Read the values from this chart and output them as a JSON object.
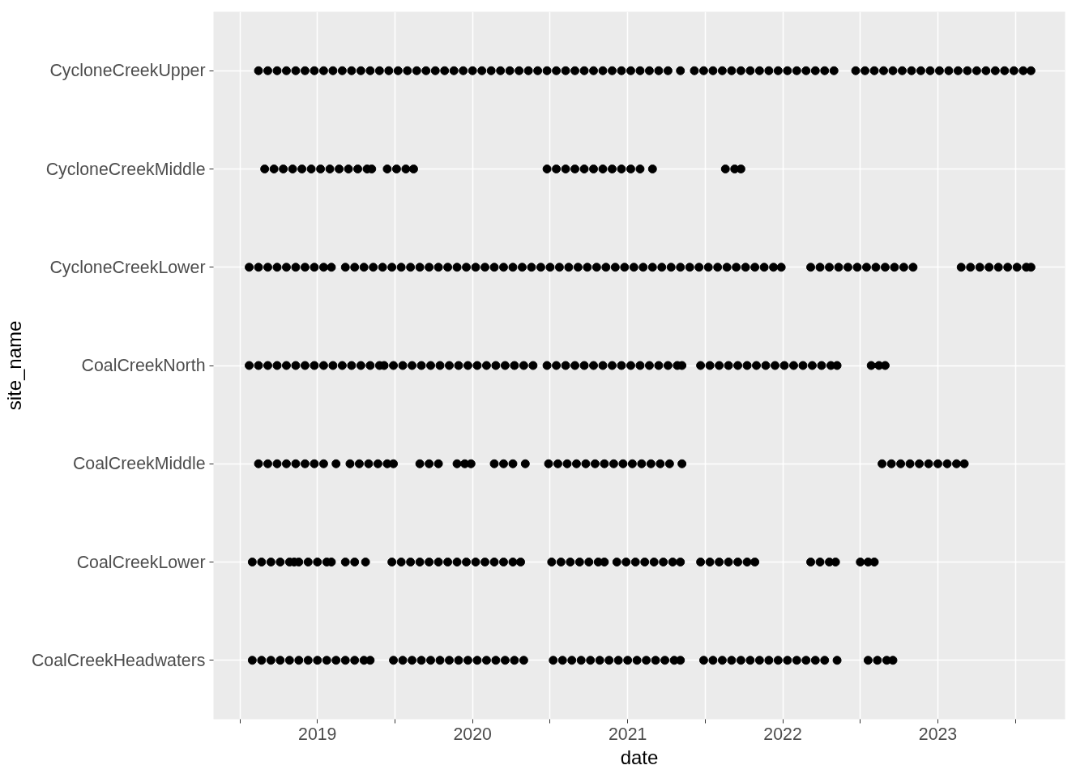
{
  "chart_data": {
    "type": "scatter",
    "orientation": "horizontal",
    "xlabel": "date",
    "ylabel": "site_name",
    "categories": [
      "CycloneCreekUpper",
      "CycloneCreekMiddle",
      "CycloneCreekLower",
      "CoalCreekNorth",
      "CoalCreekMiddle",
      "CoalCreekLower",
      "CoalCreekHeadwaters"
    ],
    "xlim": [
      2018.33,
      2023.82
    ],
    "xticks": [
      {
        "value": 2018.5,
        "label": null
      },
      {
        "value": 2019,
        "label": "2019"
      },
      {
        "value": 2019.5,
        "label": null
      },
      {
        "value": 2020,
        "label": "2020"
      },
      {
        "value": 2020.5,
        "label": null
      },
      {
        "value": 2021,
        "label": "2021"
      },
      {
        "value": 2021.5,
        "label": null
      },
      {
        "value": 2022,
        "label": "2022"
      },
      {
        "value": 2022.5,
        "label": null
      },
      {
        "value": 2023,
        "label": "2023"
      },
      {
        "value": 2023.5,
        "label": null
      }
    ],
    "grid": true,
    "marker": "circle",
    "color": "#000000",
    "series": [
      {
        "values": [
          2018.62,
          2018.66,
          2018.56,
          2018.56,
          2018.62,
          2018.58,
          2018.58
        ]
      },
      {
        "values": [
          2018.68,
          2018.72,
          2018.62,
          2018.62,
          2018.68,
          2018.64,
          2018.64
        ]
      },
      {
        "values": [
          2018.74,
          2018.78,
          2018.68,
          2018.68,
          2018.74,
          2018.7,
          2018.7
        ]
      },
      {
        "values": [
          2018.8,
          2018.84,
          2018.74,
          2018.74,
          2018.8,
          2018.76,
          2018.76
        ]
      },
      {
        "values": [
          2018.86,
          2018.9,
          2018.8,
          2018.8,
          2018.86,
          2018.82,
          2018.82
        ]
      },
      {
        "values": [
          2018.92,
          2018.96,
          2018.86,
          2018.86,
          2018.92,
          2018.85,
          2018.88
        ]
      },
      {
        "values": [
          2018.98,
          2019.02,
          2018.92,
          2018.92,
          2018.98,
          2018.88,
          2018.94
        ]
      },
      {
        "values": [
          2019.04,
          2019.08,
          2018.98,
          2018.98,
          2019.04,
          2018.94,
          2019.0
        ]
      },
      {
        "values": [
          2019.1,
          2019.14,
          2019.04,
          2019.04,
          null,
          2019.0,
          2019.06
        ]
      },
      {
        "values": [
          2019.16,
          2019.2,
          2019.09,
          2019.1,
          2019.12,
          2019.06,
          2019.12
        ]
      },
      {
        "values": [
          2019.22,
          2019.26,
          2019.18,
          2019.16,
          2019.21,
          2019.09,
          2019.18
        ]
      },
      {
        "values": [
          2019.28,
          2019.32,
          2019.24,
          2019.22,
          2019.27,
          2019.18,
          2019.24
        ]
      },
      {
        "values": [
          2019.34,
          2019.35,
          2019.3,
          2019.28,
          2019.33,
          2019.24,
          2019.3
        ]
      },
      {
        "values": [
          2019.4,
          2019.45,
          2019.36,
          2019.34,
          2019.39,
          2019.31,
          2019.34
        ]
      },
      {
        "values": [
          2019.46,
          2019.51,
          2019.42,
          2019.4,
          2019.45,
          2019.48,
          2019.49
        ]
      },
      {
        "values": [
          2019.52,
          2019.57,
          2019.48,
          2019.43,
          2019.49,
          2019.54,
          2019.55
        ]
      },
      {
        "values": [
          2019.58,
          2019.62,
          2019.54,
          2019.49,
          2019.66,
          2019.6,
          2019.61
        ]
      },
      {
        "values": [
          2019.64,
          2020.48,
          2019.6,
          2019.55,
          2019.72,
          2019.66,
          2019.67
        ]
      },
      {
        "values": [
          2019.7,
          2020.54,
          2019.66,
          2019.61,
          2019.78,
          2019.72,
          2019.73
        ]
      },
      {
        "values": [
          2019.76,
          2020.6,
          2019.72,
          2019.67,
          2019.9,
          2019.78,
          2019.79
        ]
      },
      {
        "values": [
          2019.82,
          2020.66,
          2019.78,
          2019.73,
          2019.95,
          2019.84,
          2019.85
        ]
      },
      {
        "values": [
          2019.88,
          2020.72,
          2019.84,
          2019.79,
          2019.99,
          2019.9,
          2019.91
        ]
      },
      {
        "values": [
          2019.94,
          2020.78,
          2019.9,
          2019.85,
          2020.14,
          2019.96,
          2019.97
        ]
      },
      {
        "values": [
          2020.0,
          2020.84,
          2019.96,
          2019.91,
          2020.2,
          2020.02,
          2020.03
        ]
      },
      {
        "values": [
          2020.06,
          2020.9,
          2020.02,
          2019.97,
          2020.26,
          2020.08,
          2020.09
        ]
      },
      {
        "values": [
          2020.12,
          2020.96,
          2020.08,
          2020.03,
          null,
          2020.14,
          2020.15
        ]
      },
      {
        "values": [
          2020.18,
          2021.02,
          2020.14,
          2020.09,
          2020.34,
          2020.2,
          2020.21
        ]
      },
      {
        "values": [
          2020.24,
          2021.08,
          2020.2,
          2020.15,
          2020.49,
          2020.26,
          2020.27
        ]
      },
      {
        "values": [
          2020.3,
          null,
          2020.26,
          2020.21,
          2020.55,
          2020.31,
          2020.33
        ]
      },
      {
        "values": [
          2020.36,
          2021.16,
          2020.32,
          2020.27,
          2020.61,
          2020.51,
          2020.52
        ]
      },
      {
        "values": [
          2020.42,
          2021.63,
          2020.38,
          2020.33,
          2020.67,
          2020.57,
          2020.58
        ]
      },
      {
        "values": [
          2020.48,
          2021.69,
          2020.44,
          2020.39,
          2020.73,
          2020.63,
          2020.64
        ]
      },
      {
        "values": [
          2020.54,
          2021.73,
          2020.5,
          2020.48,
          2020.79,
          2020.69,
          2020.7
        ]
      },
      {
        "values": [
          2020.6,
          null,
          2020.56,
          2020.54,
          2020.85,
          2020.75,
          2020.76
        ]
      },
      {
        "values": [
          2020.66,
          null,
          2020.62,
          2020.6,
          2020.91,
          2020.81,
          2020.82
        ]
      },
      {
        "values": [
          2020.72,
          null,
          2020.68,
          2020.66,
          2020.97,
          2020.85,
          2020.88
        ]
      },
      {
        "values": [
          2020.78,
          null,
          2020.74,
          2020.72,
          2021.03,
          2020.93,
          2020.94
        ]
      },
      {
        "values": [
          2020.84,
          null,
          2020.8,
          2020.78,
          2021.09,
          2020.99,
          2021.0
        ]
      },
      {
        "values": [
          2020.9,
          null,
          2020.86,
          2020.84,
          2021.15,
          2021.05,
          2021.06
        ]
      },
      {
        "values": [
          2020.96,
          null,
          2020.92,
          2020.9,
          2021.21,
          2021.11,
          2021.12
        ]
      },
      {
        "values": [
          2021.02,
          null,
          2020.98,
          2020.96,
          2021.27,
          2021.17,
          2021.18
        ]
      },
      {
        "values": [
          2021.08,
          null,
          2021.04,
          2021.02,
          null,
          2021.23,
          2021.24
        ]
      },
      {
        "values": [
          2021.14,
          null,
          2021.1,
          2021.08,
          2021.35,
          2021.29,
          2021.3
        ]
      },
      {
        "values": [
          2021.2,
          null,
          2021.16,
          2021.14,
          2022.64,
          2021.34,
          2021.34
        ]
      },
      {
        "values": [
          2021.26,
          null,
          2021.22,
          2021.2,
          2022.7,
          2021.47,
          2021.49
        ]
      },
      {
        "values": [
          null,
          null,
          2021.28,
          2021.26,
          2022.76,
          2021.53,
          2021.55
        ]
      },
      {
        "values": [
          2021.34,
          null,
          2021.34,
          2021.32,
          2022.82,
          2021.59,
          2021.61
        ]
      },
      {
        "values": [
          2021.43,
          null,
          2021.4,
          2021.35,
          2022.88,
          2021.65,
          2021.67
        ]
      },
      {
        "values": [
          2021.49,
          null,
          2021.46,
          2021.47,
          2022.94,
          2021.71,
          2021.73
        ]
      },
      {
        "values": [
          2021.55,
          null,
          2021.52,
          2021.53,
          2023.0,
          2021.77,
          2021.79
        ]
      },
      {
        "values": [
          2021.61,
          null,
          2021.58,
          2021.59,
          2023.06,
          2021.82,
          2021.85
        ]
      },
      {
        "values": [
          2021.67,
          null,
          2021.64,
          2021.65,
          2023.12,
          2022.18,
          2021.91
        ]
      },
      {
        "values": [
          2021.73,
          null,
          2021.7,
          2021.71,
          2023.17,
          2022.24,
          2021.97
        ]
      },
      {
        "values": [
          2021.79,
          null,
          2021.76,
          2021.77,
          null,
          2022.3,
          2022.03
        ]
      },
      {
        "values": [
          2021.85,
          null,
          2021.82,
          2021.83,
          null,
          2022.34,
          2022.09
        ]
      },
      {
        "values": [
          2021.91,
          null,
          2021.88,
          2021.89,
          null,
          2022.5,
          2022.15
        ]
      },
      {
        "values": [
          2021.97,
          null,
          2021.94,
          2021.95,
          null,
          2022.55,
          2022.21
        ]
      },
      {
        "values": [
          2022.03,
          null,
          2021.99,
          2022.01,
          null,
          2022.59,
          2022.27
        ]
      },
      {
        "values": [
          2022.09,
          null,
          2022.18,
          2022.07,
          null,
          null,
          null
        ]
      },
      {
        "values": [
          2022.15,
          null,
          2022.24,
          2022.13,
          null,
          null,
          2022.35
        ]
      },
      {
        "values": [
          2022.21,
          null,
          2022.3,
          2022.19,
          null,
          null,
          2022.55
        ]
      },
      {
        "values": [
          2022.27,
          null,
          2022.36,
          2022.25,
          null,
          null,
          2022.61
        ]
      },
      {
        "values": [
          2022.33,
          null,
          2022.42,
          2022.31,
          null,
          null,
          2022.67
        ]
      },
      {
        "values": [
          2022.47,
          null,
          2022.48,
          2022.35,
          null,
          null,
          2022.71
        ]
      },
      {
        "values": [
          2022.53,
          null,
          2022.54,
          2022.57,
          null,
          null,
          null
        ]
      },
      {
        "values": [
          2022.59,
          null,
          2022.6,
          2022.62,
          null,
          null,
          null
        ]
      },
      {
        "values": [
          2022.65,
          null,
          2022.66,
          2022.66,
          null,
          null,
          null
        ]
      },
      {
        "values": [
          2022.71,
          null,
          2022.72,
          null,
          null,
          null,
          null
        ]
      },
      {
        "values": [
          2022.77,
          null,
          2022.78,
          null,
          null,
          null,
          null
        ]
      },
      {
        "values": [
          2022.83,
          null,
          2022.84,
          null,
          null,
          null,
          null
        ]
      },
      {
        "values": [
          2022.89,
          null,
          2023.15,
          null,
          null,
          null,
          null
        ]
      },
      {
        "values": [
          2022.95,
          null,
          2023.21,
          null,
          null,
          null,
          null
        ]
      },
      {
        "values": [
          2023.01,
          null,
          2023.27,
          null,
          null,
          null,
          null
        ]
      },
      {
        "values": [
          2023.07,
          null,
          2023.33,
          null,
          null,
          null,
          null
        ]
      },
      {
        "values": [
          2023.13,
          null,
          2023.39,
          null,
          null,
          null,
          null
        ]
      },
      {
        "values": [
          2023.19,
          null,
          2023.45,
          null,
          null,
          null,
          null
        ]
      },
      {
        "values": [
          2023.25,
          null,
          2023.51,
          null,
          null,
          null,
          null
        ]
      },
      {
        "values": [
          2023.31,
          null,
          2023.57,
          null,
          null,
          null,
          null
        ]
      },
      {
        "values": [
          2023.37,
          null,
          2023.6,
          null,
          null,
          null,
          null
        ]
      },
      {
        "values": [
          2023.43,
          null,
          null,
          null,
          null,
          null,
          null
        ]
      },
      {
        "values": [
          2023.49,
          null,
          null,
          null,
          null,
          null,
          null
        ]
      },
      {
        "values": [
          2023.55,
          null,
          null,
          null,
          null,
          null,
          null
        ]
      },
      {
        "values": [
          2023.6,
          null,
          null,
          null,
          null,
          null,
          null
        ]
      }
    ]
  }
}
